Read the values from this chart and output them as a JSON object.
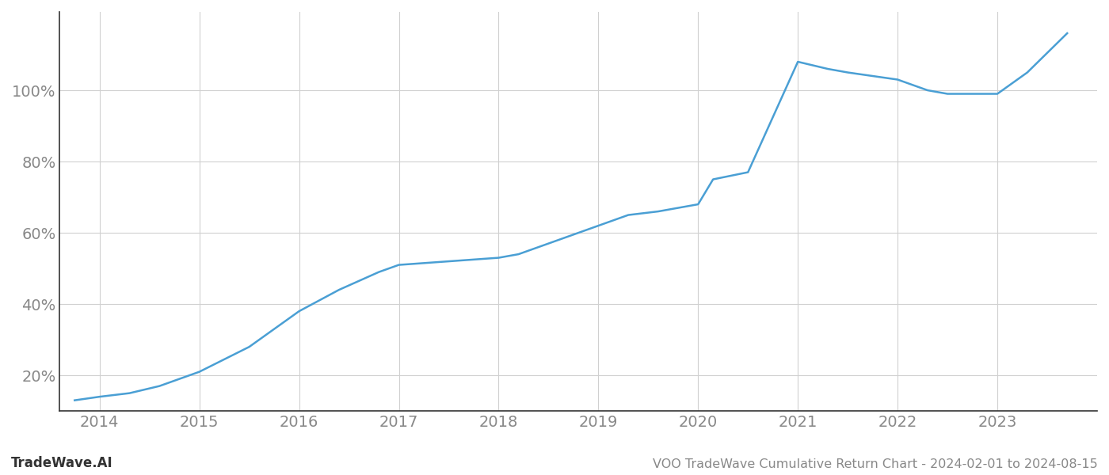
{
  "title": "VOO TradeWave Cumulative Return Chart - 2024-02-01 to 2024-08-15",
  "watermark": "TradeWave.AI",
  "line_color": "#4a9fd4",
  "background_color": "#ffffff",
  "grid_color": "#d0d0d0",
  "tick_color": "#888888",
  "spine_color": "#333333",
  "x_years": [
    2014,
    2015,
    2016,
    2017,
    2018,
    2019,
    2020,
    2021,
    2022,
    2023
  ],
  "data_x": [
    2013.75,
    2014.0,
    2014.3,
    2014.6,
    2015.0,
    2015.5,
    2016.0,
    2016.4,
    2016.8,
    2017.0,
    2017.5,
    2018.0,
    2018.2,
    2018.5,
    2019.0,
    2019.3,
    2019.6,
    2020.0,
    2020.15,
    2020.5,
    2021.0,
    2021.3,
    2021.5,
    2022.0,
    2022.3,
    2022.5,
    2023.0,
    2023.3,
    2023.7
  ],
  "data_y": [
    13,
    14,
    15,
    17,
    21,
    28,
    38,
    44,
    49,
    51,
    52,
    53,
    54,
    57,
    62,
    65,
    66,
    68,
    75,
    77,
    108,
    106,
    105,
    103,
    100,
    99,
    99,
    105,
    116
  ],
  "ylim": [
    10,
    122
  ],
  "xlim": [
    2013.6,
    2024.0
  ],
  "yticks": [
    20,
    40,
    60,
    80,
    100
  ],
  "ytick_labels": [
    "20%",
    "40%",
    "60%",
    "80%",
    "100%"
  ],
  "line_width": 1.8,
  "title_fontsize": 11.5,
  "tick_fontsize": 14,
  "watermark_fontsize": 12,
  "fig_width": 14,
  "fig_height": 6
}
